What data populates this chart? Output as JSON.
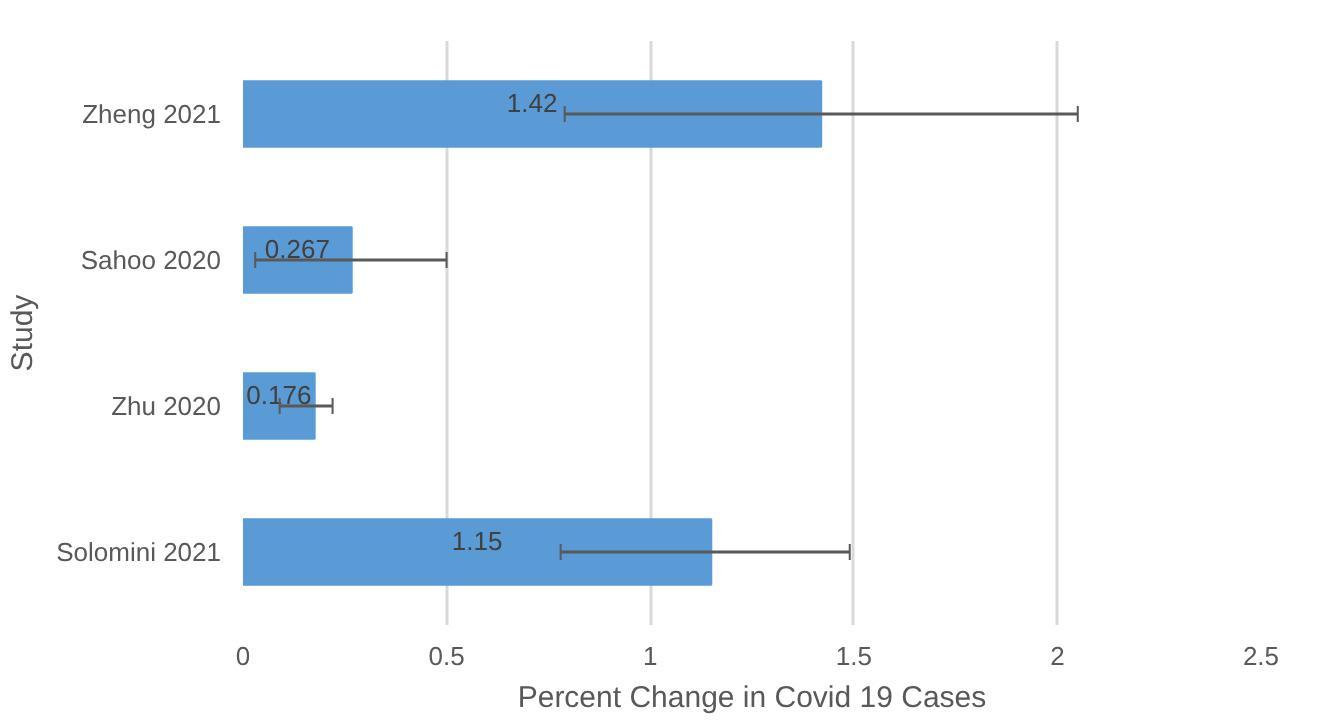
{
  "chart_data": {
    "type": "bar",
    "orientation": "horizontal",
    "xlabel": "Percent Change in Covid 19 Cases",
    "ylabel": "Study",
    "categories": [
      "Zheng 2021",
      "Sahoo 2020",
      "Zhu 2020",
      "Solomini 2021"
    ],
    "values": [
      1.42,
      0.267,
      0.176,
      1.15
    ],
    "errors": [
      [
        0.79,
        2.05
      ],
      [
        0.03,
        0.5
      ],
      [
        0.09,
        0.22
      ],
      [
        0.78,
        1.49
      ]
    ],
    "color": "#5b9bd5",
    "data_labels": true,
    "grid": "x",
    "xlim": [
      0,
      2.5
    ],
    "xticks": [
      0,
      0.5,
      1,
      1.5,
      2,
      2.5
    ]
  }
}
